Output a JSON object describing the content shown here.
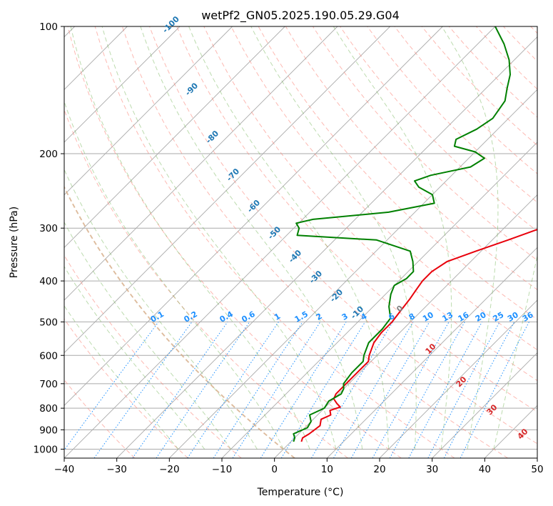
{
  "chart_data": {
    "type": "skew-t",
    "title": "wetPf2_GN05.2025.190.05.29.G04",
    "xlabel": "Temperature (°C)",
    "ylabel": "Pressure (hPa)",
    "xlim": [
      -40,
      50
    ],
    "ylim": [
      1050,
      100
    ],
    "y_scale": "log",
    "x_ticks": [
      -40,
      -30,
      -20,
      -10,
      0,
      10,
      20,
      30,
      40,
      50
    ],
    "y_ticks": [
      100,
      200,
      300,
      400,
      500,
      600,
      700,
      800,
      900,
      1000
    ],
    "grid": true,
    "series": [
      {
        "name": "",
        "color": "#e8000b",
        "role": "temperature",
        "points": [
          [
            960,
            2.0
          ],
          [
            940,
            1.5
          ],
          [
            920,
            2.0
          ],
          [
            880,
            2.5
          ],
          [
            850,
            1.5
          ],
          [
            830,
            2.5
          ],
          [
            810,
            1.5
          ],
          [
            795,
            2.8
          ],
          [
            780,
            1.5
          ],
          [
            760,
            0.0
          ],
          [
            740,
            -0.5
          ],
          [
            700,
            -0.5
          ],
          [
            660,
            -0.5
          ],
          [
            620,
            -0.5
          ],
          [
            600,
            -1.5
          ],
          [
            560,
            -3.0
          ],
          [
            530,
            -3.5
          ],
          [
            500,
            -3.5
          ],
          [
            470,
            -4.0
          ],
          [
            440,
            -4.5
          ],
          [
            420,
            -5.0
          ],
          [
            400,
            -5.5
          ],
          [
            380,
            -5.5
          ],
          [
            360,
            -4.5
          ],
          [
            340,
            -1.0
          ],
          [
            320,
            3.0
          ],
          [
            300,
            7.0
          ],
          [
            280,
            11.0
          ],
          [
            260,
            15.0
          ],
          [
            240,
            17.5
          ],
          [
            220,
            20.5
          ],
          [
            200,
            23.5
          ],
          [
            180,
            27.0
          ],
          [
            160,
            30.5
          ],
          [
            145,
            33.0
          ],
          [
            130,
            36.0
          ],
          [
            120,
            39.0
          ],
          [
            110,
            42.0
          ],
          [
            100,
            45.0
          ]
        ]
      },
      {
        "name": "",
        "color": "#008000",
        "role": "dewpoint",
        "points": [
          [
            960,
            0.5
          ],
          [
            940,
            0.0
          ],
          [
            920,
            -1.0
          ],
          [
            890,
            0.5
          ],
          [
            860,
            0.0
          ],
          [
            830,
            -1.5
          ],
          [
            800,
            0.0
          ],
          [
            770,
            -0.5
          ],
          [
            740,
            0.5
          ],
          [
            720,
            0.0
          ],
          [
            700,
            -1.0
          ],
          [
            660,
            -1.5
          ],
          [
            620,
            -1.5
          ],
          [
            600,
            -2.5
          ],
          [
            560,
            -4.0
          ],
          [
            520,
            -4.0
          ],
          [
            490,
            -4.5
          ],
          [
            460,
            -7.0
          ],
          [
            430,
            -9.0
          ],
          [
            410,
            -10.0
          ],
          [
            395,
            -9.0
          ],
          [
            380,
            -9.0
          ],
          [
            360,
            -11.0
          ],
          [
            340,
            -13.5
          ],
          [
            320,
            -22.0
          ],
          [
            312,
            -38.0
          ],
          [
            300,
            -39.0
          ],
          [
            292,
            -40.5
          ],
          [
            286,
            -38.0
          ],
          [
            275,
            -25.0
          ],
          [
            262,
            -18.0
          ],
          [
            250,
            -20.0
          ],
          [
            240,
            -24.0
          ],
          [
            232,
            -26.0
          ],
          [
            225,
            -24.0
          ],
          [
            215,
            -18.0
          ],
          [
            205,
            -17.0
          ],
          [
            198,
            -20.0
          ],
          [
            192,
            -25.0
          ],
          [
            185,
            -26.0
          ],
          [
            175,
            -24.0
          ],
          [
            165,
            -23.0
          ],
          [
            150,
            -24.0
          ],
          [
            140,
            -26.0
          ],
          [
            130,
            -28.0
          ],
          [
            120,
            -31.0
          ],
          [
            110,
            -35.0
          ],
          [
            100,
            -40.0
          ]
        ]
      }
    ],
    "mixing_ratio_labels": [
      "0.1",
      "0.2",
      "0.4",
      "0.6",
      "1",
      "1.5",
      "2",
      "3",
      "4",
      "6",
      "8",
      "10",
      "13",
      "16",
      "20",
      "25",
      "30",
      "36"
    ],
    "moist_adiabat_labels": [
      "-100",
      "-90",
      "-80",
      "-70",
      "-60",
      "-50",
      "-40",
      "-30",
      "-20",
      "-10",
      "0",
      "10",
      "20",
      "30",
      "40"
    ],
    "colors": {
      "isotherm": "#aaaaaa",
      "isobar": "#aaaaaa",
      "dry_adiabat": "#fb8072",
      "moist_adiabat": "#6ab04c",
      "mixing_ratio": "#1e90ff",
      "freezing_level": "#d2b48c",
      "label_cold": "#1f78b4",
      "label_warm": "#d62728",
      "label_zero": "#7f7f7f"
    }
  }
}
